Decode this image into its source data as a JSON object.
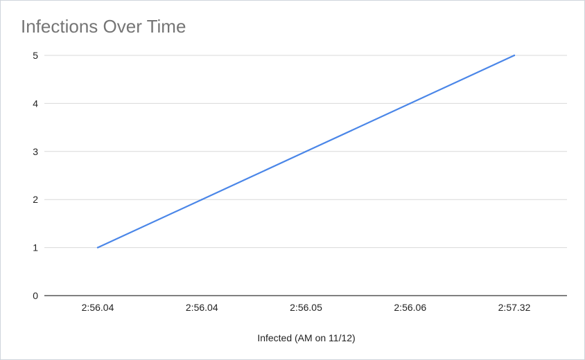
{
  "chart_data": {
    "type": "line",
    "title": "Infections Over Time",
    "xlabel": "Infected (AM on 11/12)",
    "ylabel": "",
    "categories": [
      "2:56.04",
      "2:56.04",
      "2:56.05",
      "2:56.06",
      "2:57.32"
    ],
    "series": [
      {
        "values": [
          1,
          2,
          3,
          4,
          5
        ],
        "color": "#4a86e8"
      }
    ],
    "ylim": [
      0,
      5
    ],
    "yticks": [
      0,
      1,
      2,
      3,
      4,
      5
    ],
    "grid": true,
    "legend": "none"
  }
}
